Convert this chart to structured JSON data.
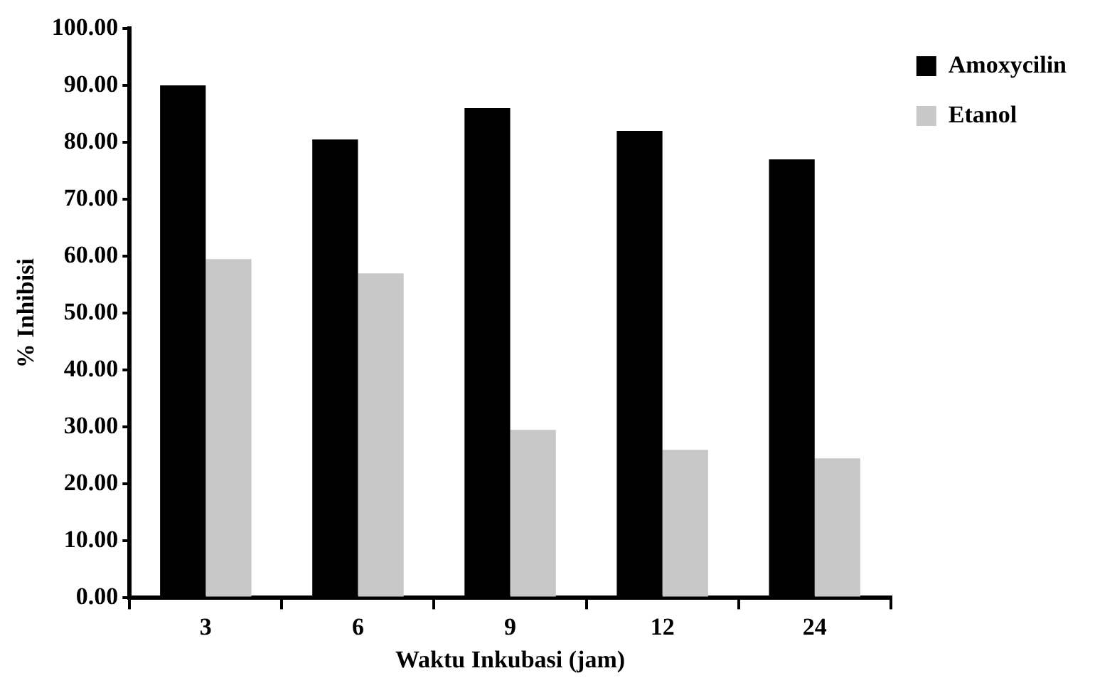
{
  "chart_data": {
    "type": "bar",
    "xlabel": "Waktu Inkubasi (jam)",
    "ylabel": "% Inhibisi",
    "categories": [
      "3",
      "6",
      "9",
      "12",
      "24"
    ],
    "series": [
      {
        "name": "Amoxycilin",
        "color": "#000000",
        "values": [
          90,
          80.5,
          86,
          82,
          77
        ]
      },
      {
        "name": "Etanol",
        "color": "#c8c8c8",
        "values": [
          59.5,
          57,
          29.5,
          26,
          24.5
        ]
      }
    ],
    "ylim": [
      0,
      100
    ],
    "yticks": [
      {
        "value": 0,
        "label": "0.00"
      },
      {
        "value": 10,
        "label": "10.00"
      },
      {
        "value": 20,
        "label": "20.00"
      },
      {
        "value": 30,
        "label": "30.00"
      },
      {
        "value": 40,
        "label": "40.00"
      },
      {
        "value": 50,
        "label": "50.00"
      },
      {
        "value": 60,
        "label": "60.00"
      },
      {
        "value": 70,
        "label": "70.00"
      },
      {
        "value": 80,
        "label": "80.00"
      },
      {
        "value": 90,
        "label": "90.00"
      },
      {
        "value": 100,
        "label": "100.00"
      }
    ],
    "grid": false,
    "legend": "right"
  }
}
